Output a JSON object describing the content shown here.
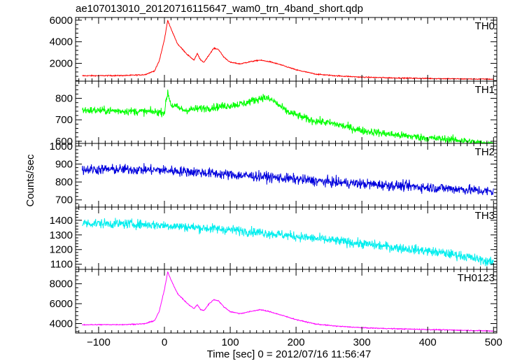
{
  "chart_data": {
    "type": "line",
    "title": "ae107013010_20120716115647_wam0_trn_4band_short.qdp",
    "xlabel": "Time [sec] 0 = 2012/07/16 11:56:47",
    "ylabel": "Counts/sec",
    "xlim": [
      -135,
      505
    ],
    "xticks": [
      -100,
      0,
      100,
      200,
      300,
      400,
      500
    ],
    "xtick_labels": [
      "−100",
      "0",
      "100",
      "200",
      "300",
      "400",
      "500"
    ],
    "grid": false,
    "panels": [
      {
        "name": "TH0",
        "color": "#ff0000",
        "ylim": [
          350,
          6250
        ],
        "yticks": [
          2000,
          4000,
          6000
        ],
        "ytick_labels": [
          "2000",
          "4000",
          "6000"
        ],
        "noise": 45,
        "knots": [
          [
            -125,
            850
          ],
          [
            -60,
            870
          ],
          [
            -30,
            950
          ],
          [
            -15,
            1300
          ],
          [
            -8,
            2200
          ],
          [
            0,
            4200
          ],
          [
            5,
            6000
          ],
          [
            10,
            5200
          ],
          [
            20,
            3800
          ],
          [
            35,
            2800
          ],
          [
            45,
            2300
          ],
          [
            50,
            2900
          ],
          [
            55,
            2300
          ],
          [
            60,
            2100
          ],
          [
            68,
            2800
          ],
          [
            75,
            3400
          ],
          [
            82,
            3300
          ],
          [
            90,
            2600
          ],
          [
            100,
            2100
          ],
          [
            115,
            1950
          ],
          [
            130,
            2150
          ],
          [
            145,
            2300
          ],
          [
            160,
            2150
          ],
          [
            175,
            1900
          ],
          [
            200,
            1400
          ],
          [
            230,
            1000
          ],
          [
            260,
            850
          ],
          [
            300,
            720
          ],
          [
            350,
            650
          ],
          [
            400,
            600
          ],
          [
            450,
            560
          ],
          [
            500,
            530
          ]
        ]
      },
      {
        "name": "TH1",
        "color": "#00ff00",
        "ylim": [
          590,
          880
        ],
        "yticks": [
          600,
          700,
          800
        ],
        "ytick_labels": [
          "600",
          "700",
          "800"
        ],
        "noise": 18,
        "knots": [
          [
            -125,
            745
          ],
          [
            -50,
            740
          ],
          [
            0,
            735
          ],
          [
            5,
            830
          ],
          [
            10,
            770
          ],
          [
            30,
            745
          ],
          [
            80,
            760
          ],
          [
            120,
            775
          ],
          [
            150,
            805
          ],
          [
            165,
            790
          ],
          [
            185,
            740
          ],
          [
            220,
            700
          ],
          [
            260,
            680
          ],
          [
            300,
            650
          ],
          [
            350,
            630
          ],
          [
            400,
            615
          ],
          [
            450,
            605
          ],
          [
            500,
            580
          ]
        ]
      },
      {
        "name": "TH2",
        "color": "#0000dd",
        "ylim": [
          660,
          1015
        ],
        "yticks": [
          700,
          800,
          900,
          1000
        ],
        "ytick_labels": [
          "700",
          "800",
          "900",
          "1000"
        ],
        "noise": 28,
        "knots": [
          [
            -125,
            870
          ],
          [
            -50,
            870
          ],
          [
            0,
            865
          ],
          [
            50,
            855
          ],
          [
            100,
            840
          ],
          [
            150,
            830
          ],
          [
            200,
            815
          ],
          [
            250,
            800
          ],
          [
            300,
            790
          ],
          [
            350,
            780
          ],
          [
            400,
            770
          ],
          [
            450,
            760
          ],
          [
            500,
            745
          ]
        ]
      },
      {
        "name": "TH3",
        "color": "#00eeee",
        "ylim": [
          1065,
          1490
        ],
        "yticks": [
          1100,
          1200,
          1300,
          1400
        ],
        "ytick_labels": [
          "1100",
          "1200",
          "1300",
          "1400"
        ],
        "noise": 32,
        "knots": [
          [
            -125,
            1380
          ],
          [
            -50,
            1375
          ],
          [
            0,
            1365
          ],
          [
            50,
            1350
          ],
          [
            100,
            1335
          ],
          [
            150,
            1315
          ],
          [
            200,
            1290
          ],
          [
            250,
            1265
          ],
          [
            300,
            1240
          ],
          [
            350,
            1215
          ],
          [
            400,
            1190
          ],
          [
            450,
            1160
          ],
          [
            500,
            1110
          ]
        ]
      },
      {
        "name": "TH0123",
        "color": "#ff00ff",
        "ylim": [
          3050,
          9450
        ],
        "yticks": [
          4000,
          6000,
          8000
        ],
        "ytick_labels": [
          "4000",
          "6000",
          "8000"
        ],
        "noise": 45,
        "knots": [
          [
            -125,
            3880
          ],
          [
            -60,
            3900
          ],
          [
            -30,
            3980
          ],
          [
            -15,
            4300
          ],
          [
            -8,
            5200
          ],
          [
            0,
            7400
          ],
          [
            5,
            9200
          ],
          [
            10,
            8400
          ],
          [
            20,
            7000
          ],
          [
            35,
            6000
          ],
          [
            45,
            5500
          ],
          [
            50,
            5900
          ],
          [
            55,
            5400
          ],
          [
            60,
            5300
          ],
          [
            68,
            6000
          ],
          [
            75,
            6400
          ],
          [
            82,
            6300
          ],
          [
            90,
            5700
          ],
          [
            100,
            5200
          ],
          [
            115,
            5000
          ],
          [
            130,
            5200
          ],
          [
            145,
            5400
          ],
          [
            160,
            5200
          ],
          [
            175,
            4900
          ],
          [
            200,
            4400
          ],
          [
            230,
            3950
          ],
          [
            260,
            3750
          ],
          [
            300,
            3580
          ],
          [
            350,
            3480
          ],
          [
            400,
            3400
          ],
          [
            450,
            3330
          ],
          [
            500,
            3250
          ]
        ]
      }
    ]
  }
}
